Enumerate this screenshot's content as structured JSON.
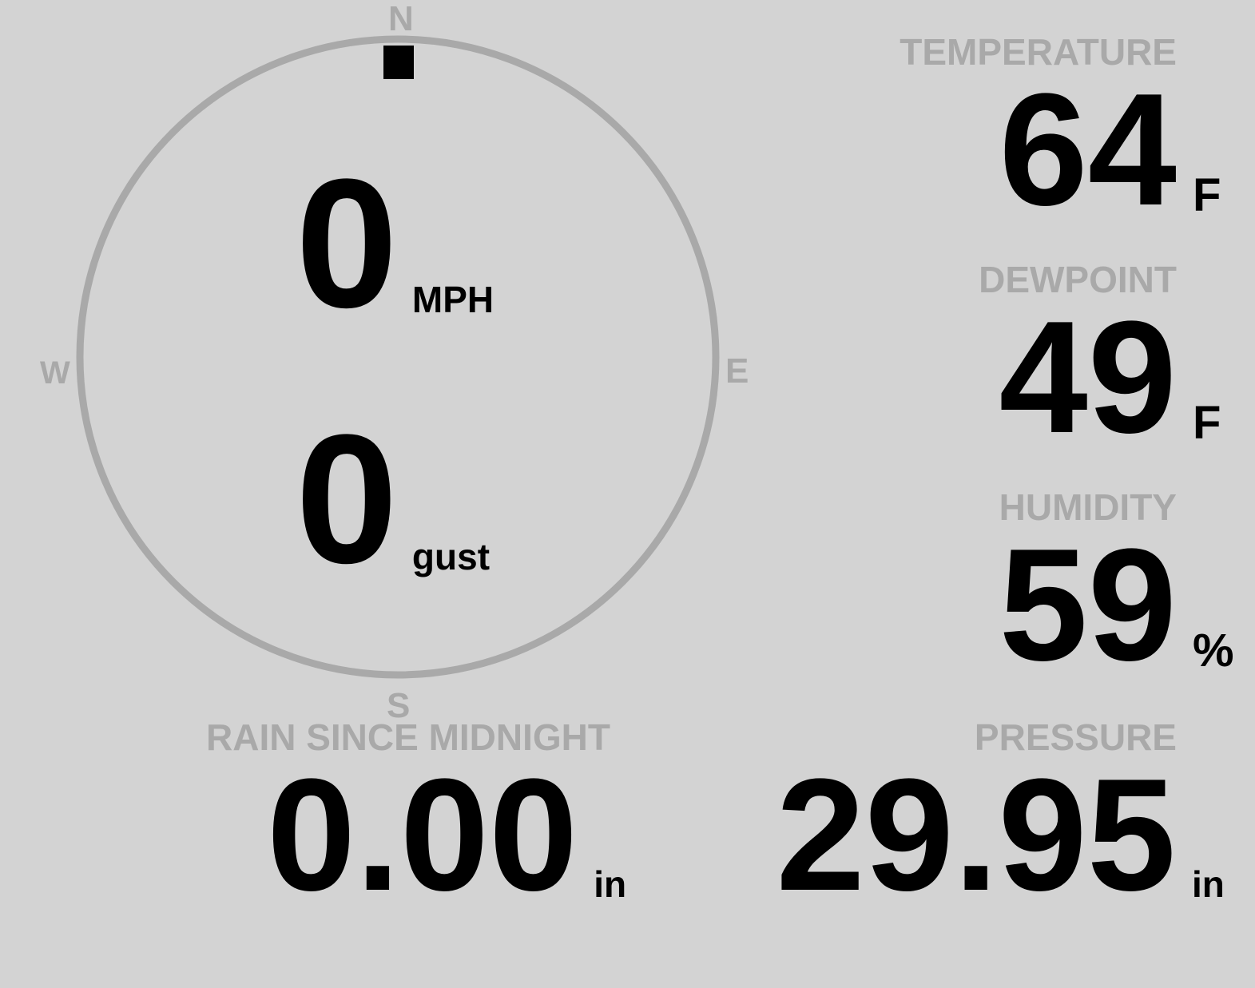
{
  "colors": {
    "background": "#d3d3d3",
    "label": "#a9a9a9",
    "value": "#000000",
    "compass_ring": "#a9a9a9"
  },
  "compass": {
    "cardinals": {
      "n": "N",
      "e": "E",
      "s": "S",
      "w": "W"
    },
    "wind_direction_deg": 0,
    "wind_speed": {
      "value": "0",
      "unit": "MPH"
    },
    "gust": {
      "value": "0",
      "unit": "gust"
    }
  },
  "temperature": {
    "label": "TEMPERATURE",
    "value": "64",
    "unit": "F"
  },
  "dewpoint": {
    "label": "DEWPOINT",
    "value": "49",
    "unit": "F"
  },
  "humidity": {
    "label": "HUMIDITY",
    "value": "59",
    "unit": "%"
  },
  "rain": {
    "label": "RAIN SINCE MIDNIGHT",
    "value": "0.00",
    "unit": "in"
  },
  "pressure": {
    "label": "PRESSURE",
    "value": "29.95",
    "unit": "in"
  }
}
